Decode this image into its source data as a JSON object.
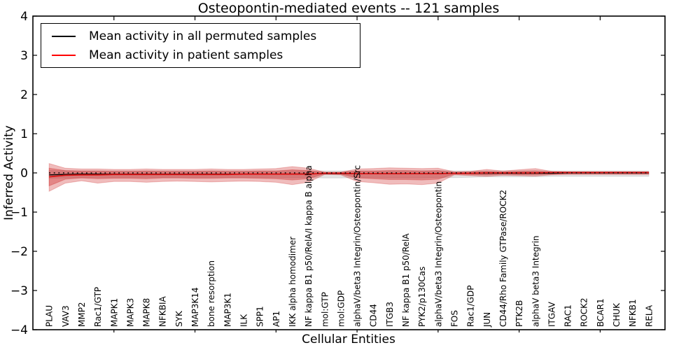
{
  "figure": {
    "title": "Osteopontin-mediated events -- 121 samples",
    "xlabel": "Cellular Entities",
    "ylabel": "Inferred Activity"
  },
  "legend": {
    "entries": [
      {
        "label": "Mean activity in all permuted samples",
        "color": "#000000"
      },
      {
        "label": "Mean activity in patient samples",
        "color": "#ff0000"
      }
    ],
    "position": "upper left"
  },
  "chart_data": {
    "type": "line",
    "title": "Osteopontin-mediated events -- 121 samples",
    "xlabel": "Cellular Entities",
    "ylabel": "Inferred Activity",
    "ylim": [
      -4,
      4
    ],
    "yticks": [
      -4,
      -3,
      -2,
      -1,
      0,
      1,
      2,
      3,
      4
    ],
    "x_range": [
      0,
      39
    ],
    "x_numeric_tick_positions": [
      5,
      10,
      15,
      20,
      25,
      30,
      35
    ],
    "grid": false,
    "zero_line": {
      "value": 0,
      "style": "dotted",
      "color": "#000000"
    },
    "categories": [
      "PLAU",
      "VAV3",
      "MMP2",
      "Rac1/GTP",
      "MAPK1",
      "MAPK3",
      "MAPK8",
      "NFKBIA",
      "SYK",
      "MAP3K14",
      "bone resorption",
      "MAP3K1",
      "ILK",
      "SPP1",
      "AP1",
      "IKK alpha homodimer",
      "NF kappa B1 p50/RelA/I kappa B alpha",
      "mol:GTP",
      "mol:GDP",
      "alphaV/beta3 Integrin/Osteopontin/Src",
      "CD44",
      "ITGB3",
      "NF kappa B1 p50/RelA",
      "PYK2/p130Cas",
      "alphaV/beta3 Integrin/Osteopontin",
      "FOS",
      "Rac1/GDP",
      "JUN",
      "CD44/Rho Family GTPase/ROCK2",
      "PTK2B",
      "alphaV beta3 Integrin",
      "ITGAV",
      "RAC1",
      "ROCK2",
      "BCAR1",
      "CHUK",
      "NFKB1",
      "RELA"
    ],
    "series": [
      {
        "name": "Mean activity in all permuted samples",
        "color": "#000000",
        "values": [
          -0.05,
          -0.04,
          -0.03,
          -0.03,
          -0.03,
          -0.03,
          -0.03,
          -0.03,
          -0.03,
          -0.03,
          -0.03,
          -0.03,
          -0.03,
          -0.03,
          -0.03,
          -0.03,
          -0.02,
          -0.02,
          -0.02,
          -0.02,
          -0.02,
          -0.02,
          -0.02,
          -0.02,
          -0.02,
          -0.01,
          -0.01,
          -0.01,
          -0.01,
          -0.01,
          -0.01,
          -0.01,
          0,
          0,
          0,
          0,
          0,
          0
        ]
      },
      {
        "name": "Mean activity in patient samples",
        "color": "#dc1414",
        "values": [
          -0.1,
          -0.06,
          -0.05,
          -0.05,
          -0.04,
          -0.04,
          -0.04,
          -0.04,
          -0.04,
          -0.04,
          -0.04,
          -0.04,
          -0.03,
          -0.03,
          -0.03,
          -0.03,
          -0.03,
          -0.01,
          -0.01,
          -0.02,
          -0.02,
          -0.02,
          -0.02,
          -0.02,
          -0.02,
          -0.01,
          -0.01,
          0,
          0,
          0,
          0,
          0.01,
          0.01,
          0.01,
          0.01,
          0.01,
          0.01,
          0.01
        ]
      }
    ],
    "bands": [
      {
        "name": "permuted-activity-range",
        "color": "#8a8a8a",
        "opacity": 0.25,
        "top": [
          0.06,
          0.055,
          0.05,
          0.05,
          0.05,
          0.05,
          0.05,
          0.05,
          0.05,
          0.05,
          0.05,
          0.05,
          0.05,
          0.05,
          0.05,
          0.055,
          0.05,
          0.05,
          0.05,
          0.05,
          0.05,
          0.055,
          0.055,
          0.055,
          0.055,
          0.05,
          0.05,
          0.05,
          0.05,
          0.05,
          0.055,
          0.05,
          0.05,
          0.05,
          0.05,
          0.05,
          0.05,
          0.05
        ],
        "bottom": [
          -0.14,
          -0.13,
          -0.12,
          -0.12,
          -0.12,
          -0.12,
          -0.12,
          -0.12,
          -0.12,
          -0.12,
          -0.12,
          -0.12,
          -0.12,
          -0.12,
          -0.12,
          -0.13,
          -0.12,
          -0.13,
          -0.13,
          -0.12,
          -0.12,
          -0.13,
          -0.13,
          -0.13,
          -0.12,
          -0.12,
          -0.11,
          -0.1,
          -0.1,
          -0.1,
          -0.1,
          -0.09,
          -0.09,
          -0.09,
          -0.09,
          -0.09,
          -0.09,
          -0.09
        ]
      },
      {
        "name": "patient-activity-band-outer",
        "color": "#cc2222",
        "opacity": 0.3,
        "top": [
          0.24,
          0.12,
          0.1,
          0.1,
          0.09,
          0.09,
          0.1,
          0.09,
          0.09,
          0.09,
          0.1,
          0.09,
          0.09,
          0.1,
          0.11,
          0.16,
          0.12,
          0.02,
          0.02,
          0.1,
          0.11,
          0.13,
          0.12,
          0.11,
          0.12,
          0.03,
          0.04,
          0.09,
          0.05,
          0.08,
          0.11,
          0.04,
          0.03,
          0.03,
          0.03,
          0.03,
          0.03,
          0.03
        ],
        "bottom": [
          -0.47,
          -0.26,
          -0.2,
          -0.26,
          -0.22,
          -0.22,
          -0.24,
          -0.22,
          -0.21,
          -0.22,
          -0.23,
          -0.22,
          -0.21,
          -0.22,
          -0.24,
          -0.3,
          -0.24,
          -0.04,
          -0.05,
          -0.22,
          -0.25,
          -0.29,
          -0.28,
          -0.3,
          -0.26,
          -0.05,
          -0.07,
          -0.09,
          -0.06,
          -0.07,
          -0.08,
          -0.05,
          -0.04,
          -0.04,
          -0.04,
          -0.04,
          -0.04,
          -0.04
        ]
      },
      {
        "name": "patient-activity-band-inner",
        "color": "#cc2222",
        "opacity": 0.35,
        "top": [
          0.12,
          0.06,
          0.05,
          0.05,
          0.04,
          0.04,
          0.05,
          0.04,
          0.04,
          0.04,
          0.05,
          0.04,
          0.04,
          0.05,
          0.05,
          0.08,
          0.06,
          0.01,
          0.01,
          0.05,
          0.05,
          0.06,
          0.06,
          0.05,
          0.06,
          0.01,
          0.02,
          0.04,
          0.02,
          0.04,
          0.05,
          0.02,
          0.015,
          0.015,
          0.015,
          0.015,
          0.015,
          0.015
        ],
        "bottom": [
          -0.33,
          -0.16,
          -0.13,
          -0.15,
          -0.14,
          -0.14,
          -0.15,
          -0.13,
          -0.13,
          -0.14,
          -0.14,
          -0.13,
          -0.13,
          -0.14,
          -0.15,
          -0.18,
          -0.15,
          -0.02,
          -0.03,
          -0.13,
          -0.15,
          -0.17,
          -0.17,
          -0.18,
          -0.16,
          -0.03,
          -0.04,
          -0.05,
          -0.03,
          -0.04,
          -0.04,
          -0.03,
          -0.02,
          -0.02,
          -0.02,
          -0.02,
          -0.02,
          -0.02
        ]
      }
    ],
    "legend_position": "upper left"
  }
}
